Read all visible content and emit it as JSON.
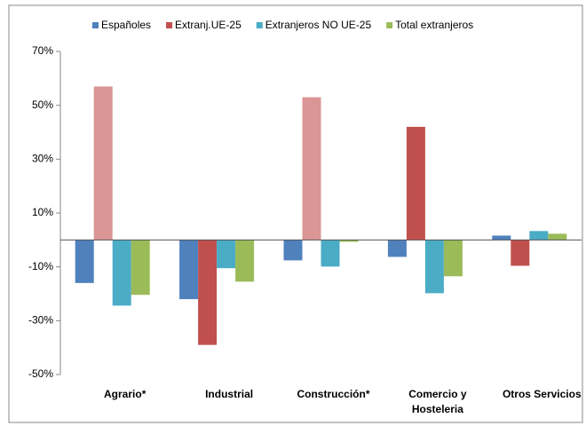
{
  "chart_data": {
    "type": "bar",
    "categories": [
      "Agrario*",
      "Industrial",
      "Construcción*",
      "Comercio y Hosteleria",
      "Otros Servicios"
    ],
    "series": [
      {
        "name": "Españoles",
        "color": "#4f81bd",
        "values": [
          -16,
          -22,
          -7.6,
          -6.3,
          1.6
        ]
      },
      {
        "name": "Extranj.UE-25",
        "color": "#c0504d",
        "colors": [
          "#d99694",
          "#c0504d",
          "#d99694",
          "#c0504d",
          "#c0504d"
        ],
        "values": [
          57,
          -39,
          53,
          42,
          -9.6
        ]
      },
      {
        "name": "Extranjeros NO UE-25",
        "color": "#4bacc6",
        "values": [
          -24.4,
          -10.5,
          -9.9,
          -19.8,
          3.3
        ]
      },
      {
        "name": "Total extranjeros",
        "color": "#9bbb59",
        "values": [
          -20.4,
          -15.5,
          -0.7,
          -13.5,
          2.3
        ]
      }
    ],
    "ylim": [
      -50,
      70
    ],
    "yticks": [
      {
        "value": -50,
        "label": "-50%"
      },
      {
        "value": -30,
        "label": "-30%"
      },
      {
        "value": -10,
        "label": "-10%"
      },
      {
        "value": 10,
        "label": "10%"
      },
      {
        "value": 30,
        "label": "30%"
      },
      {
        "value": 50,
        "label": "50%"
      },
      {
        "value": 70,
        "label": "70%"
      }
    ]
  }
}
